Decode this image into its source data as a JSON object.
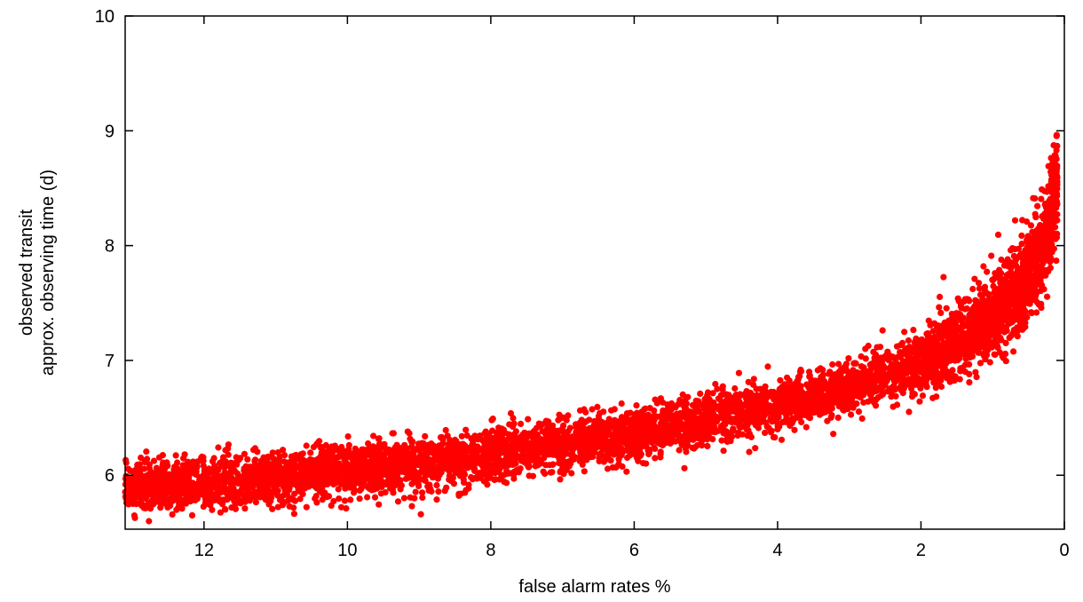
{
  "chart_data": {
    "type": "scatter",
    "title": "",
    "xlabel": "false alarm rates %",
    "ylabel_lines": [
      "observed transit",
      "approx. observing time (d)"
    ],
    "x_reversed": true,
    "xlim": [
      13.1,
      0.0
    ],
    "ylim": [
      5.53,
      10.0
    ],
    "x_ticks": [
      12,
      10,
      8,
      6,
      4,
      2,
      0
    ],
    "y_ticks": [
      6,
      7,
      8,
      9,
      10
    ],
    "x_tick_labels": [
      "12",
      "10",
      "8",
      "6",
      "4",
      "2",
      "0"
    ],
    "y_tick_labels": [
      "6",
      "7",
      "8",
      "9",
      "10"
    ],
    "grid": false,
    "legend": "none",
    "point_color": "#ff0000",
    "trend": [
      {
        "x": 13.0,
        "y": 5.9
      },
      {
        "x": 12.0,
        "y": 5.93
      },
      {
        "x": 11.0,
        "y": 5.98
      },
      {
        "x": 10.0,
        "y": 6.05
      },
      {
        "x": 9.0,
        "y": 6.1
      },
      {
        "x": 8.0,
        "y": 6.18
      },
      {
        "x": 7.0,
        "y": 6.27
      },
      {
        "x": 6.0,
        "y": 6.35
      },
      {
        "x": 5.0,
        "y": 6.47
      },
      {
        "x": 4.0,
        "y": 6.6
      },
      {
        "x": 3.0,
        "y": 6.77
      },
      {
        "x": 2.0,
        "y": 6.98
      },
      {
        "x": 1.5,
        "y": 7.15
      },
      {
        "x": 1.0,
        "y": 7.38
      },
      {
        "x": 0.6,
        "y": 7.65
      },
      {
        "x": 0.35,
        "y": 7.9
      },
      {
        "x": 0.2,
        "y": 8.2
      },
      {
        "x": 0.1,
        "y": 8.6
      }
    ],
    "point_count_approx": 6000
  }
}
